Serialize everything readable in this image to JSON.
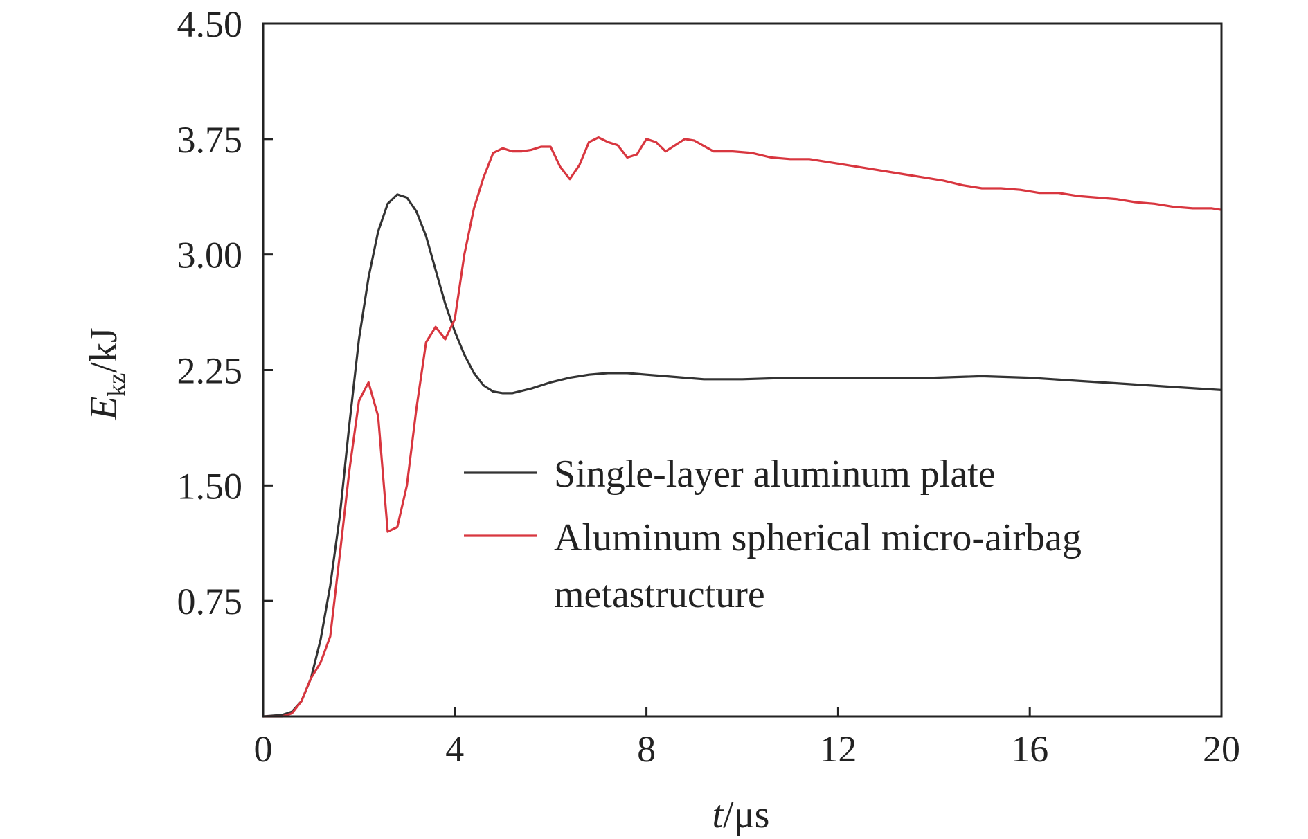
{
  "chart_data": {
    "type": "line",
    "xlabel": {
      "var": "t",
      "unit": "/μs"
    },
    "ylabel": {
      "var": "E",
      "sub": "kz",
      "unit": "/kJ"
    },
    "xlim": [
      0,
      20
    ],
    "ylim": [
      0,
      4.5
    ],
    "xticks": [
      "0",
      "4",
      "8",
      "12",
      "16",
      "20"
    ],
    "yticks": [
      "0.75",
      "1.50",
      "2.25",
      "3.00",
      "3.75",
      "4.50"
    ],
    "grid": false,
    "legend_position": "center-right",
    "series": [
      {
        "name": "Single-layer aluminum plate",
        "color": "#333333",
        "x": [
          0,
          0.4,
          0.6,
          0.8,
          1.0,
          1.2,
          1.4,
          1.6,
          1.8,
          2.0,
          2.2,
          2.4,
          2.6,
          2.8,
          3.0,
          3.2,
          3.4,
          3.6,
          3.8,
          4.0,
          4.2,
          4.4,
          4.6,
          4.8,
          5.0,
          5.2,
          5.6,
          6.0,
          6.4,
          6.8,
          7.2,
          7.6,
          8.0,
          8.4,
          8.8,
          9.2,
          9.6,
          10.0,
          11.0,
          12.0,
          13.0,
          14.0,
          15.0,
          16.0,
          17.0,
          18.0,
          19.0,
          20.0
        ],
        "y": [
          0,
          0.01,
          0.03,
          0.1,
          0.25,
          0.5,
          0.85,
          1.3,
          1.9,
          2.45,
          2.85,
          3.15,
          3.33,
          3.39,
          3.37,
          3.28,
          3.12,
          2.9,
          2.68,
          2.5,
          2.35,
          2.23,
          2.15,
          2.11,
          2.1,
          2.1,
          2.13,
          2.17,
          2.2,
          2.22,
          2.23,
          2.23,
          2.22,
          2.21,
          2.2,
          2.19,
          2.19,
          2.19,
          2.2,
          2.2,
          2.2,
          2.2,
          2.21,
          2.2,
          2.18,
          2.16,
          2.14,
          2.12
        ]
      },
      {
        "name": "Aluminum spherical micro-airbag metastructure",
        "color": "#d8363f",
        "x": [
          0,
          0.4,
          0.6,
          0.8,
          1.0,
          1.2,
          1.4,
          1.6,
          1.8,
          2.0,
          2.2,
          2.4,
          2.6,
          2.8,
          3.0,
          3.2,
          3.4,
          3.6,
          3.8,
          4.0,
          4.2,
          4.4,
          4.6,
          4.8,
          5.0,
          5.2,
          5.4,
          5.6,
          5.8,
          6.0,
          6.2,
          6.4,
          6.6,
          6.8,
          7.0,
          7.2,
          7.4,
          7.6,
          7.8,
          8.0,
          8.2,
          8.4,
          8.6,
          8.8,
          9.0,
          9.4,
          9.8,
          10.2,
          10.6,
          11.0,
          11.4,
          11.8,
          12.2,
          12.6,
          13.0,
          13.4,
          13.8,
          14.2,
          14.6,
          15.0,
          15.4,
          15.8,
          16.2,
          16.6,
          17.0,
          17.4,
          17.8,
          18.2,
          18.6,
          19.0,
          19.4,
          19.8,
          20.0
        ],
        "y": [
          0,
          0.0,
          0.02,
          0.1,
          0.25,
          0.35,
          0.52,
          1.05,
          1.6,
          2.05,
          2.17,
          1.95,
          1.2,
          1.23,
          1.5,
          2.0,
          2.43,
          2.53,
          2.45,
          2.58,
          3.0,
          3.3,
          3.5,
          3.66,
          3.69,
          3.67,
          3.67,
          3.68,
          3.7,
          3.7,
          3.57,
          3.49,
          3.58,
          3.73,
          3.76,
          3.73,
          3.71,
          3.63,
          3.65,
          3.75,
          3.73,
          3.67,
          3.71,
          3.75,
          3.74,
          3.67,
          3.67,
          3.66,
          3.63,
          3.62,
          3.62,
          3.6,
          3.58,
          3.56,
          3.54,
          3.52,
          3.5,
          3.48,
          3.45,
          3.43,
          3.43,
          3.42,
          3.4,
          3.4,
          3.38,
          3.37,
          3.36,
          3.34,
          3.33,
          3.31,
          3.3,
          3.3,
          3.29
        ]
      }
    ]
  }
}
